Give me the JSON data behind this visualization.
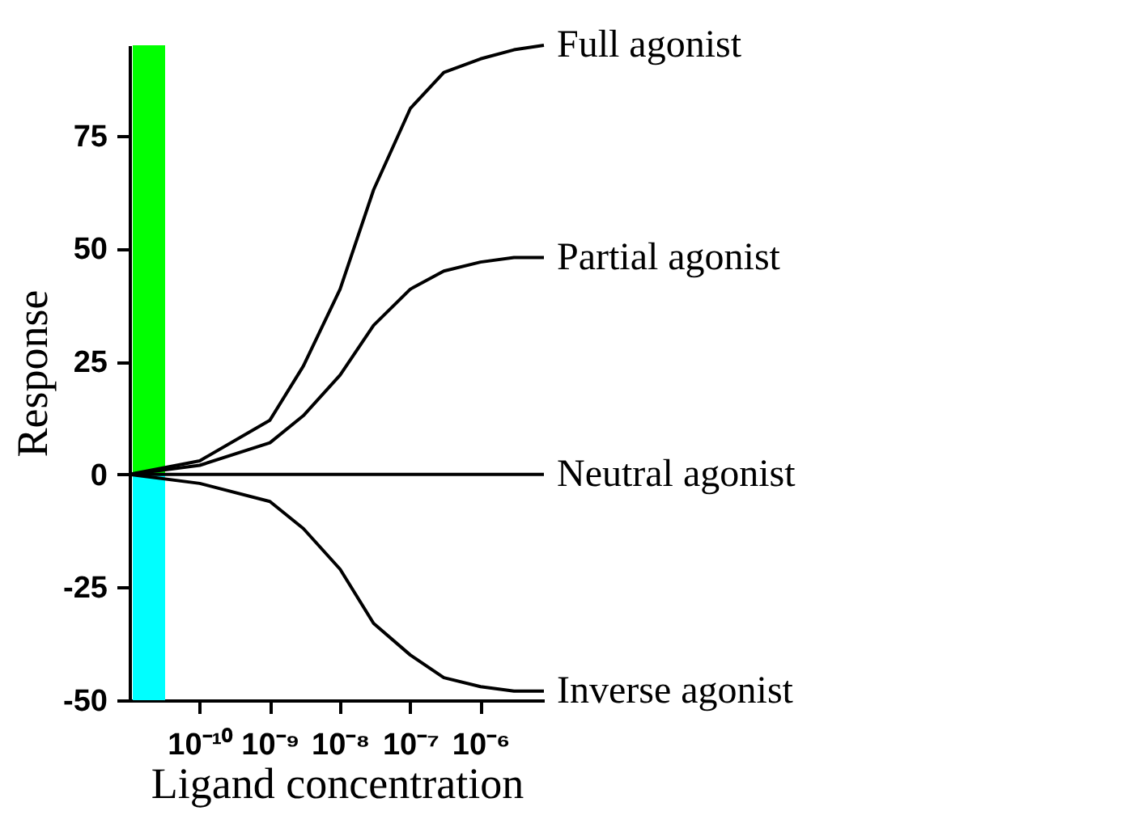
{
  "chart_data": {
    "type": "line",
    "xlabel": "Ligand concentration",
    "ylabel": "Response",
    "log": "x",
    "xlim": [
      1e-11,
      8e-06
    ],
    "ylim": [
      -50,
      95
    ],
    "bands": [
      {
        "axis": "y",
        "from": 0,
        "to": 95,
        "color": "#00ff00"
      },
      {
        "axis": "y",
        "from": -50,
        "to": 0,
        "color": "#00ffff"
      }
    ],
    "xticks": [
      {
        "value": 1e-10,
        "label": "10⁻¹⁰"
      },
      {
        "value": 1e-09,
        "label": "10⁻⁹"
      },
      {
        "value": 1e-08,
        "label": "10⁻⁸"
      },
      {
        "value": 1e-07,
        "label": "10⁻⁷"
      },
      {
        "value": 1e-06,
        "label": "10⁻⁶"
      }
    ],
    "yticks": [
      -50,
      -25,
      0,
      25,
      50,
      75
    ],
    "x": [
      1e-11,
      1e-10,
      1e-09,
      3e-09,
      1e-08,
      3e-08,
      1e-07,
      3e-07,
      1e-06,
      3e-06,
      8e-06
    ],
    "series": [
      {
        "name": "Full agonist",
        "color": "#000000",
        "values": [
          0,
          3,
          12,
          24,
          41,
          63,
          81,
          89,
          92,
          94,
          95
        ]
      },
      {
        "name": "Partial agonist",
        "color": "#000000",
        "values": [
          0,
          2,
          7,
          13,
          22,
          33,
          41,
          45,
          47,
          48,
          48
        ]
      },
      {
        "name": "Neutral agonist",
        "color": "#000000",
        "values": [
          0,
          0,
          0,
          0,
          0,
          0,
          0,
          0,
          0,
          0,
          0
        ]
      },
      {
        "name": "Inverse agonist",
        "color": "#000000",
        "values": [
          0,
          -2,
          -6,
          -12,
          -21,
          -33,
          -40,
          -45,
          -47,
          -48,
          -48
        ]
      }
    ]
  }
}
